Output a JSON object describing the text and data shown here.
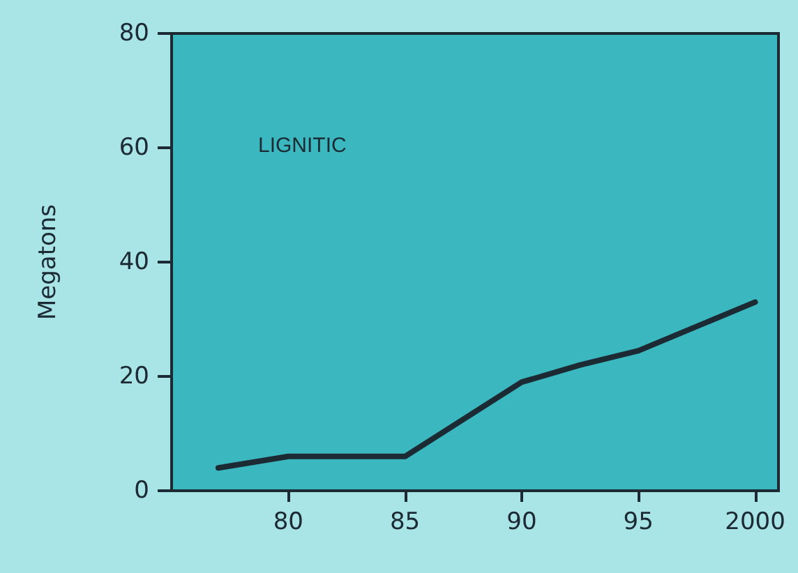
{
  "chart_data": {
    "type": "line",
    "title": "LIGNITIC",
    "ylabel": "Megatons",
    "x": [
      1977,
      1980,
      1985,
      1990,
      1992.5,
      1995,
      2000
    ],
    "series": [
      {
        "color": "#1c2b33",
        "values": [
          4,
          6,
          6,
          19,
          22,
          24.5,
          33
        ]
      }
    ],
    "xlim": [
      1975,
      2001
    ],
    "xticks": [
      {
        "value": 1980,
        "label": "80"
      },
      {
        "value": 1985,
        "label": "85"
      },
      {
        "value": 1990,
        "label": "90"
      },
      {
        "value": 1995,
        "label": "95"
      },
      {
        "value": 2000,
        "label": "2000"
      }
    ],
    "ylim": [
      0,
      80
    ],
    "yticks": [
      0,
      20,
      40,
      60,
      80
    ],
    "grid": false,
    "marker": "none",
    "line_style": "solid"
  }
}
